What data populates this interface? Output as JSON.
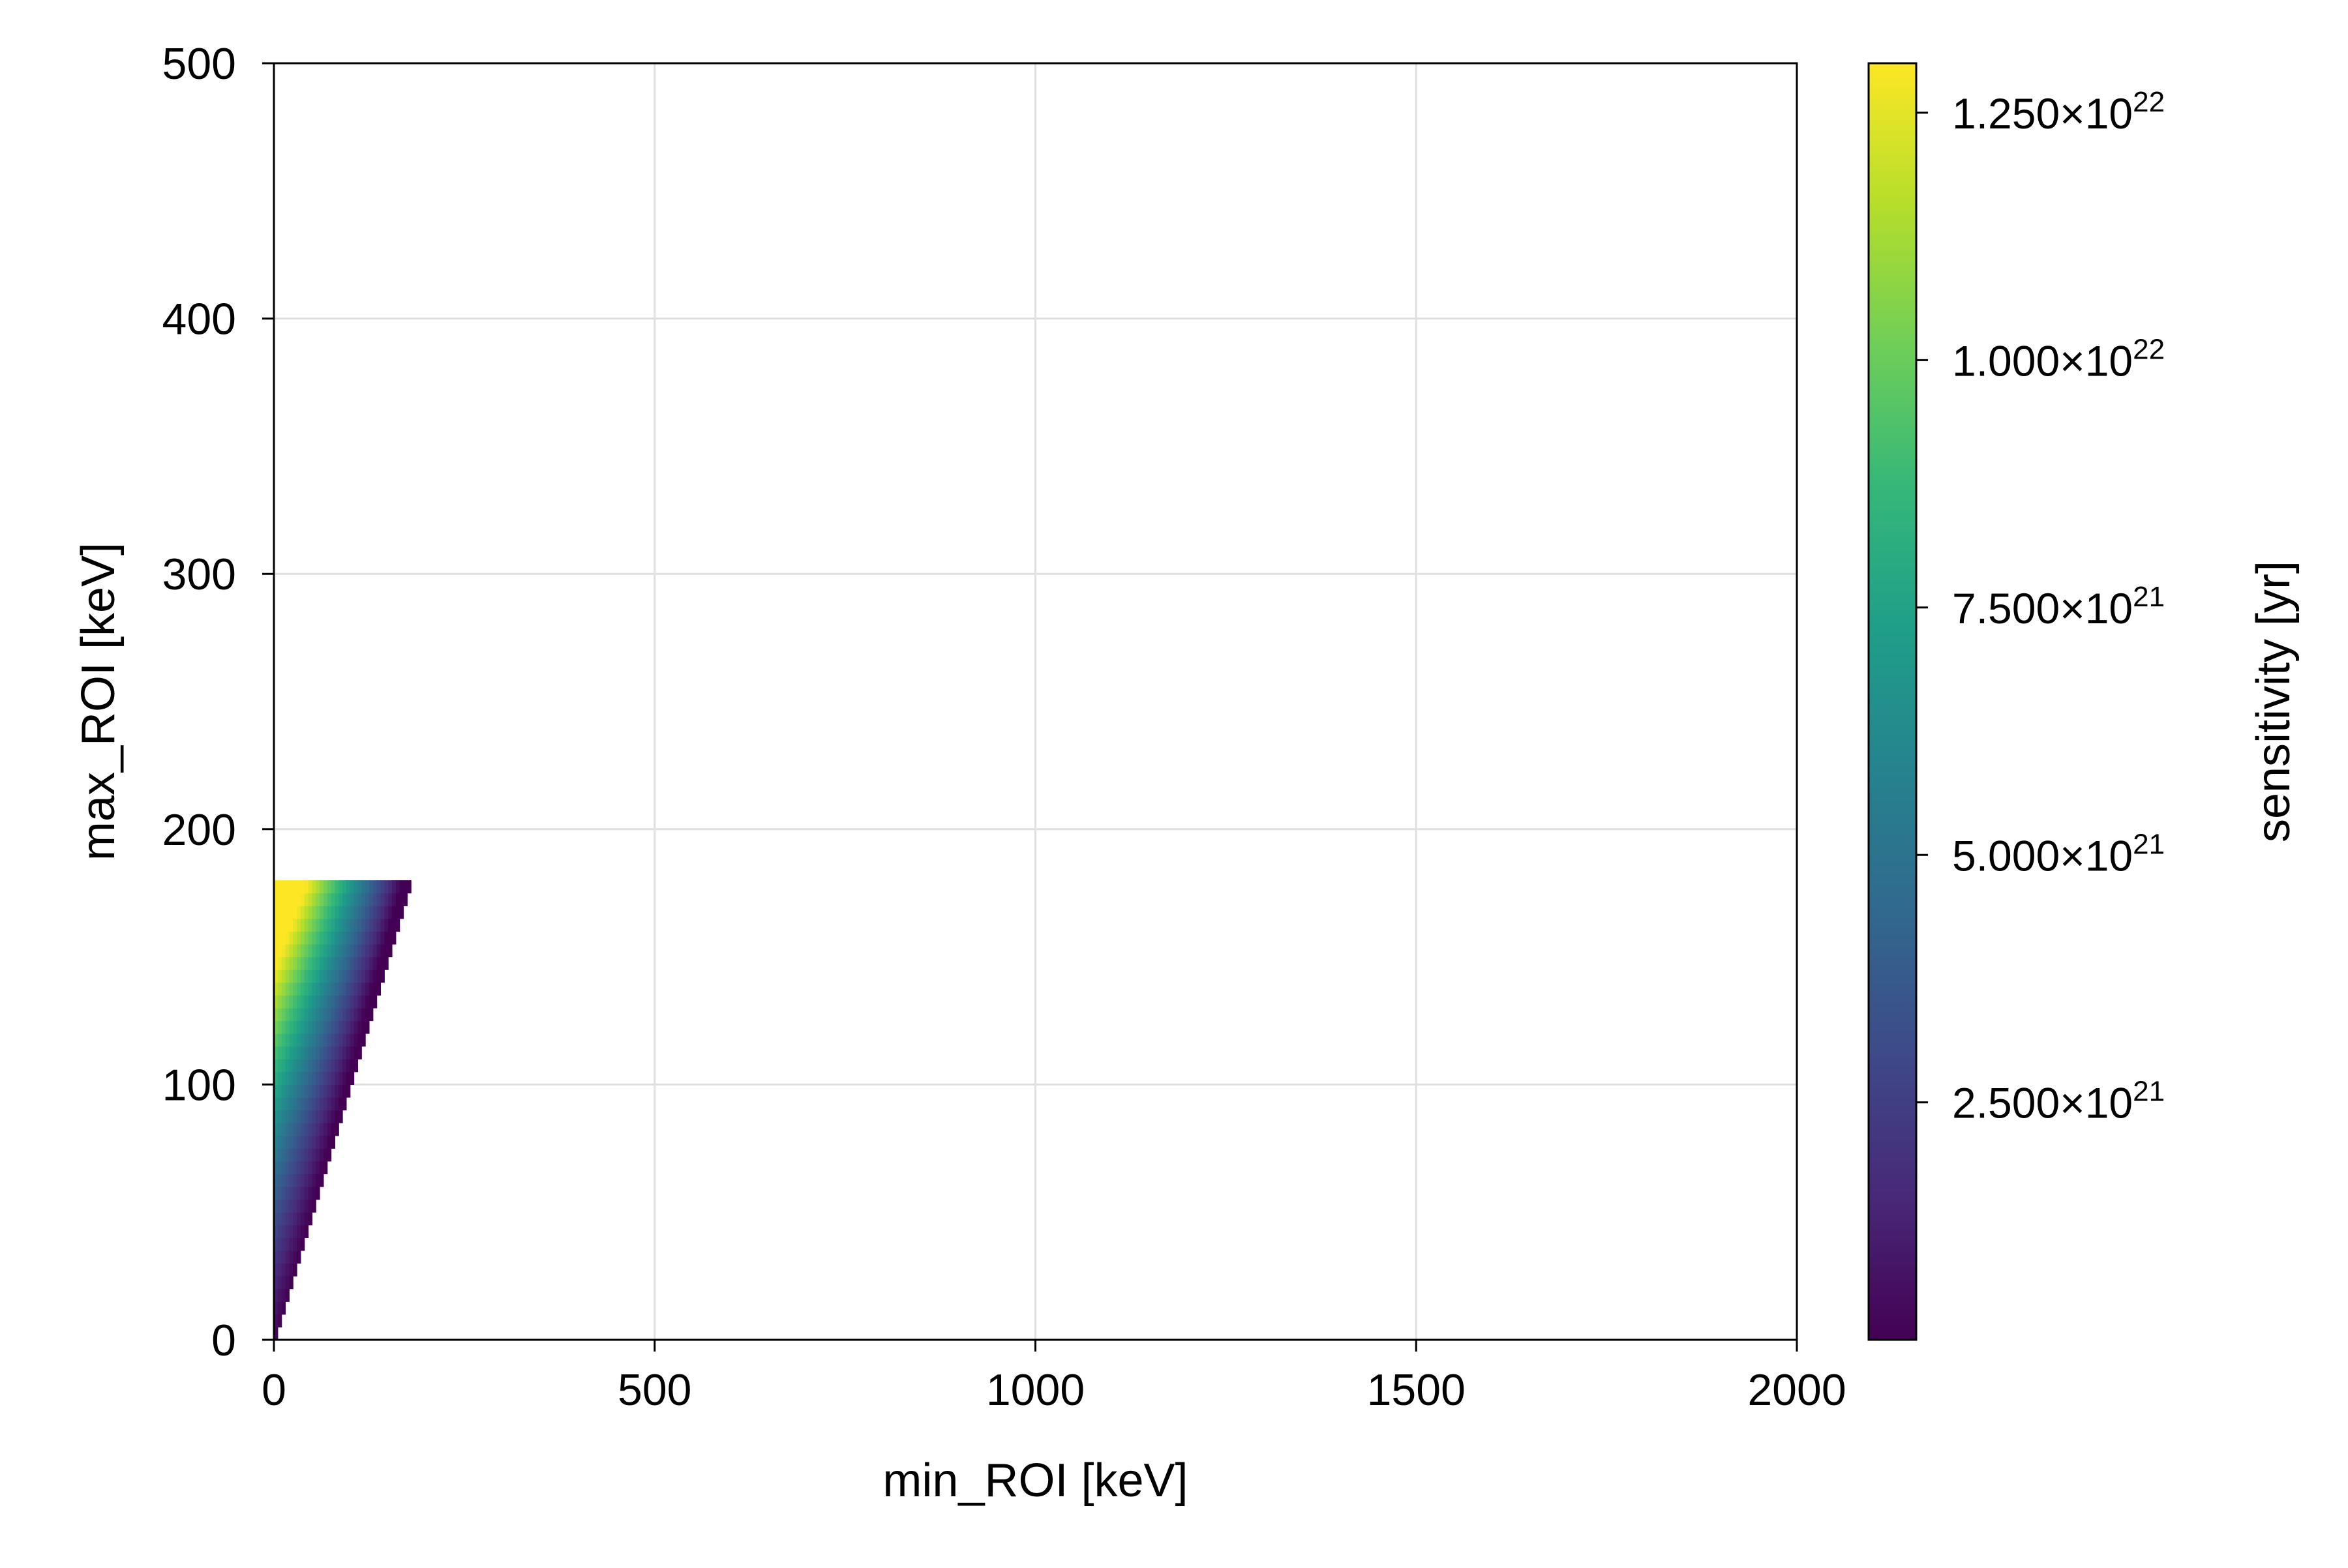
{
  "chart_data": {
    "type": "heatmap",
    "title": "",
    "xlabel": "min_ROI [keV]",
    "ylabel": "max_ROI [keV]",
    "xlim": [
      0,
      2000
    ],
    "ylim": [
      0,
      500
    ],
    "x_ticks": [
      0,
      500,
      1000,
      1500,
      2000
    ],
    "y_ticks": [
      0,
      100,
      200,
      300,
      400,
      500
    ],
    "x_tick_labels": [
      "0",
      "500",
      "1000",
      "1500",
      "2000"
    ],
    "y_tick_labels": [
      "0",
      "100",
      "200",
      "300",
      "400",
      "500"
    ],
    "grid": true,
    "colormap": "viridis",
    "colors": {
      "grid": "#e0e0e0",
      "axis": "#000000",
      "viridis": [
        "#440154",
        "#482878",
        "#3e4989",
        "#31688e",
        "#26828e",
        "#1f9e89",
        "#35b779",
        "#6ece58",
        "#b5de2b",
        "#fde725"
      ]
    },
    "colorbar": {
      "label": "sensitivity [yr]",
      "range": [
        1e+20,
        1.3e+22
      ],
      "ticks": [
        2.5e+21,
        5e+21,
        7.5e+21,
        1e+22,
        1.25e+22
      ],
      "tick_mantissas": [
        "2.500×10",
        "5.000×10",
        "7.500×10",
        "1.000×10",
        "1.250×10"
      ],
      "tick_exponents": [
        "21",
        "21",
        "21",
        "22",
        "22"
      ]
    },
    "data": {
      "cell_size_keV": 5,
      "region": "cells where min_ROI < max_ROI, max_ROI from 0 to 180 keV",
      "max_ROI_max": 180,
      "sensitivity_model": "decreases roughly linearly with min_ROI, rising with window width (max_ROI - min_ROI)",
      "sample_points": [
        {
          "min_ROI": 0,
          "max_ROI": 180,
          "sensitivity": 1.28e+22
        },
        {
          "min_ROI": 0,
          "max_ROI": 100,
          "sensitivity": 8.6e+21
        },
        {
          "min_ROI": 0,
          "max_ROI": 50,
          "sensitivity": 5.8e+21
        },
        {
          "min_ROI": 0,
          "max_ROI": 10,
          "sensitivity": 1.2e+21
        },
        {
          "min_ROI": 90,
          "max_ROI": 180,
          "sensitivity": 6.8e+21
        },
        {
          "min_ROI": 170,
          "max_ROI": 180,
          "sensitivity": 3e+20
        }
      ]
    }
  }
}
